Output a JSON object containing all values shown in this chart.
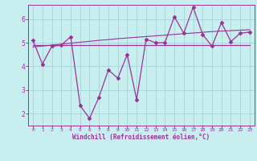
{
  "xlabel": "Windchill (Refroidissement éolien,°C)",
  "bg_color": "#c8eef0",
  "grid_color": "#a8d8d8",
  "line_color": "#993399",
  "xlim": [
    -0.5,
    23.5
  ],
  "ylim": [
    1.5,
    6.6
  ],
  "yticks": [
    2,
    3,
    4,
    5,
    6
  ],
  "xticks": [
    0,
    1,
    2,
    3,
    4,
    5,
    6,
    7,
    8,
    9,
    10,
    11,
    12,
    13,
    14,
    15,
    16,
    17,
    18,
    19,
    20,
    21,
    22,
    23
  ],
  "actual_y": [
    5.1,
    4.1,
    4.85,
    4.9,
    5.25,
    2.35,
    1.8,
    2.7,
    3.85,
    3.5,
    4.5,
    2.6,
    5.15,
    5.0,
    5.0,
    6.1,
    5.4,
    6.5,
    5.35,
    4.85,
    5.85,
    5.05,
    5.4,
    5.45
  ],
  "mean_y": [
    4.9,
    4.9,
    4.9,
    4.9,
    4.9,
    4.9,
    4.9,
    4.9,
    4.9,
    4.9,
    4.9,
    4.9,
    4.9,
    4.9,
    4.9,
    4.9,
    4.9,
    4.9,
    4.9,
    4.9,
    4.9,
    4.9,
    4.9,
    4.9
  ],
  "trend_y": [
    4.82,
    4.86,
    4.9,
    4.94,
    4.98,
    5.02,
    5.06,
    5.1,
    5.13,
    5.17,
    5.2,
    5.23,
    5.26,
    5.29,
    5.32,
    5.35,
    5.38,
    5.41,
    5.44,
    5.47,
    5.49,
    5.51,
    5.53,
    5.55
  ]
}
